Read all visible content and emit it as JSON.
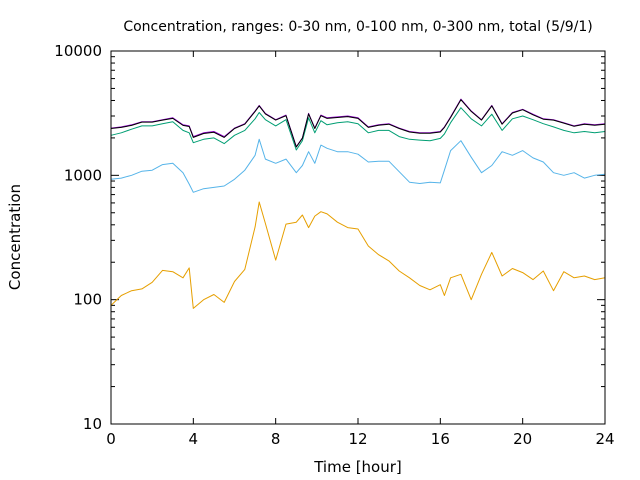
{
  "chart_data": {
    "type": "line",
    "title": "Concentration, ranges: 0-30 nm, 0-100 nm, 0-300 nm, total (5/9/1)",
    "xlabel": "Time [hour]",
    "ylabel": "Concentration",
    "xlim": [
      0,
      24
    ],
    "ylim": [
      10,
      10000
    ],
    "yscale": "log",
    "grid": false,
    "legend": "none",
    "x_ticks": [
      0,
      4,
      8,
      12,
      16,
      20,
      24
    ],
    "x_tick_labels": [
      "0",
      "4",
      "8",
      "12",
      "16",
      "20",
      "24"
    ],
    "y_ticks": [
      10,
      100,
      1000,
      10000
    ],
    "y_tick_labels": [
      "10",
      "100",
      "1000",
      "10000"
    ],
    "x": [
      0,
      0.5,
      1,
      1.5,
      2,
      2.5,
      3,
      3.5,
      3.8,
      4,
      4.5,
      5,
      5.5,
      6,
      6.5,
      7,
      7.2,
      7.5,
      8,
      8.5,
      9,
      9.3,
      9.6,
      9.9,
      10.2,
      10.5,
      11,
      11.5,
      12,
      12.5,
      13,
      13.5,
      14,
      14.5,
      15,
      15.5,
      16,
      16.2,
      16.5,
      17,
      17.5,
      18,
      18.5,
      19,
      19.5,
      20,
      20.5,
      21,
      21.5,
      22,
      22.5,
      23,
      23.5,
      24
    ],
    "series": [
      {
        "color": "#e69f00",
        "values": [
          90,
          108,
          118,
          122,
          138,
          172,
          168,
          150,
          180,
          85,
          100,
          110,
          95,
          140,
          175,
          385,
          610,
          410,
          208,
          405,
          420,
          480,
          380,
          470,
          510,
          490,
          420,
          380,
          370,
          270,
          230,
          205,
          170,
          150,
          130,
          120,
          132,
          108,
          150,
          160,
          100,
          160,
          240,
          155,
          178,
          165,
          145,
          170,
          118,
          168,
          150,
          155,
          145,
          150
        ]
      },
      {
        "color": "#56b4e9",
        "values": [
          930,
          950,
          1000,
          1080,
          1100,
          1220,
          1250,
          1050,
          850,
          730,
          780,
          800,
          820,
          930,
          1100,
          1450,
          1950,
          1350,
          1250,
          1350,
          1050,
          1200,
          1550,
          1250,
          1750,
          1650,
          1550,
          1550,
          1480,
          1280,
          1300,
          1300,
          1070,
          880,
          860,
          880,
          870,
          1100,
          1580,
          1900,
          1400,
          1050,
          1200,
          1550,
          1450,
          1580,
          1380,
          1280,
          1050,
          1000,
          1050,
          950,
          1000,
          1020
        ]
      },
      {
        "color": "#009e73",
        "values": [
          2100,
          2200,
          2350,
          2500,
          2500,
          2600,
          2700,
          2300,
          2200,
          1830,
          1950,
          2000,
          1800,
          2100,
          2300,
          2850,
          3200,
          2800,
          2500,
          2800,
          1600,
          1900,
          2900,
          2200,
          2750,
          2550,
          2650,
          2700,
          2600,
          2200,
          2300,
          2300,
          2050,
          1950,
          1920,
          1900,
          1980,
          2150,
          2650,
          3500,
          2850,
          2500,
          3100,
          2300,
          2850,
          3000,
          2800,
          2600,
          2450,
          2300,
          2200,
          2250,
          2200,
          2250
        ]
      },
      {
        "color": "#9400d3",
        "values": [
          2400,
          2450,
          2550,
          2700,
          2700,
          2800,
          2900,
          2550,
          2500,
          2050,
          2200,
          2250,
          2050,
          2400,
          2600,
          3300,
          3650,
          3150,
          2800,
          3050,
          1700,
          2000,
          3150,
          2400,
          3050,
          2900,
          2950,
          3000,
          2900,
          2450,
          2550,
          2600,
          2400,
          2250,
          2200,
          2200,
          2250,
          2450,
          2950,
          4100,
          3300,
          2800,
          3650,
          2600,
          3200,
          3400,
          3100,
          2850,
          2800,
          2650,
          2500,
          2600,
          2550,
          2600
        ]
      },
      {
        "color": "#000000",
        "values": [
          2380,
          2430,
          2520,
          2680,
          2680,
          2780,
          2870,
          2520,
          2470,
          2020,
          2170,
          2220,
          2020,
          2380,
          2580,
          3270,
          3620,
          3120,
          2780,
          3020,
          1690,
          1990,
          3120,
          2380,
          3020,
          2870,
          2920,
          2970,
          2870,
          2430,
          2530,
          2580,
          2380,
          2230,
          2180,
          2180,
          2230,
          2430,
          2920,
          4060,
          3270,
          2780,
          3620,
          2580,
          3170,
          3370,
          3070,
          2830,
          2780,
          2630,
          2480,
          2580,
          2530,
          2580
        ]
      }
    ]
  }
}
